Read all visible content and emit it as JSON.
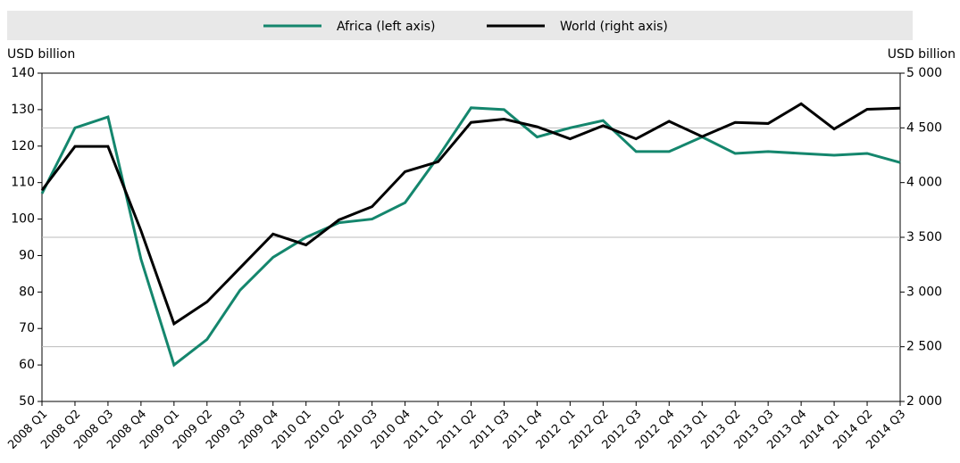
{
  "chart_data": {
    "type": "line",
    "y_label": "USD billion",
    "y2_label": "USD billion",
    "categories": [
      "2008 Q1",
      "2008 Q2",
      "2008 Q3",
      "2008 Q4",
      "2009 Q1",
      "2009 Q2",
      "2009 Q3",
      "2009 Q4",
      "2010 Q1",
      "2010 Q2",
      "2010 Q3",
      "2010 Q4",
      "2011 Q1",
      "2011 Q2",
      "2011 Q3",
      "2011 Q4",
      "2012 Q1",
      "2012 Q2",
      "2012 Q3",
      "2012 Q4",
      "2013 Q1",
      "2013 Q2",
      "2013 Q3",
      "2013 Q4",
      "2014 Q1",
      "2014 Q2",
      "2014 Q3"
    ],
    "series": [
      {
        "name": "Africa (left axis)",
        "color": "#14866d",
        "values": [
          107,
          125,
          128,
          89,
          60,
          67,
          80.5,
          89.5,
          95,
          99,
          100,
          104.5,
          117,
          130.5,
          130,
          122.5,
          125,
          127,
          118.5,
          118.5,
          122.5,
          118,
          118.5,
          118,
          117.5,
          118,
          115.5
        ]
      },
      {
        "name": "World (right axis)",
        "color": "#000000",
        "axis": "y2",
        "values": [
          3930,
          4330,
          4330,
          3560,
          2710,
          2910,
          3220,
          3530,
          3430,
          3660,
          3780,
          4100,
          4190,
          4550,
          4580,
          4510,
          4400,
          4520,
          4400,
          4560,
          4420,
          4550,
          4540,
          4720,
          4490,
          4670,
          4680
        ]
      }
    ],
    "ylim": [
      50,
      140
    ],
    "yticks": [
      50,
      60,
      70,
      80,
      90,
      100,
      110,
      120,
      130,
      140
    ],
    "y2lim": [
      2000,
      5000
    ],
    "y2ticks": [
      {
        "value": 2000,
        "label": "2 000"
      },
      {
        "value": 2500,
        "label": "2 500"
      },
      {
        "value": 3000,
        "label": "3 000"
      },
      {
        "value": 3500,
        "label": "3 500"
      },
      {
        "value": 4000,
        "label": "4 000"
      },
      {
        "value": 4500,
        "label": "4 500"
      },
      {
        "value": 5000,
        "label": "5 000"
      }
    ],
    "legend": "top"
  }
}
